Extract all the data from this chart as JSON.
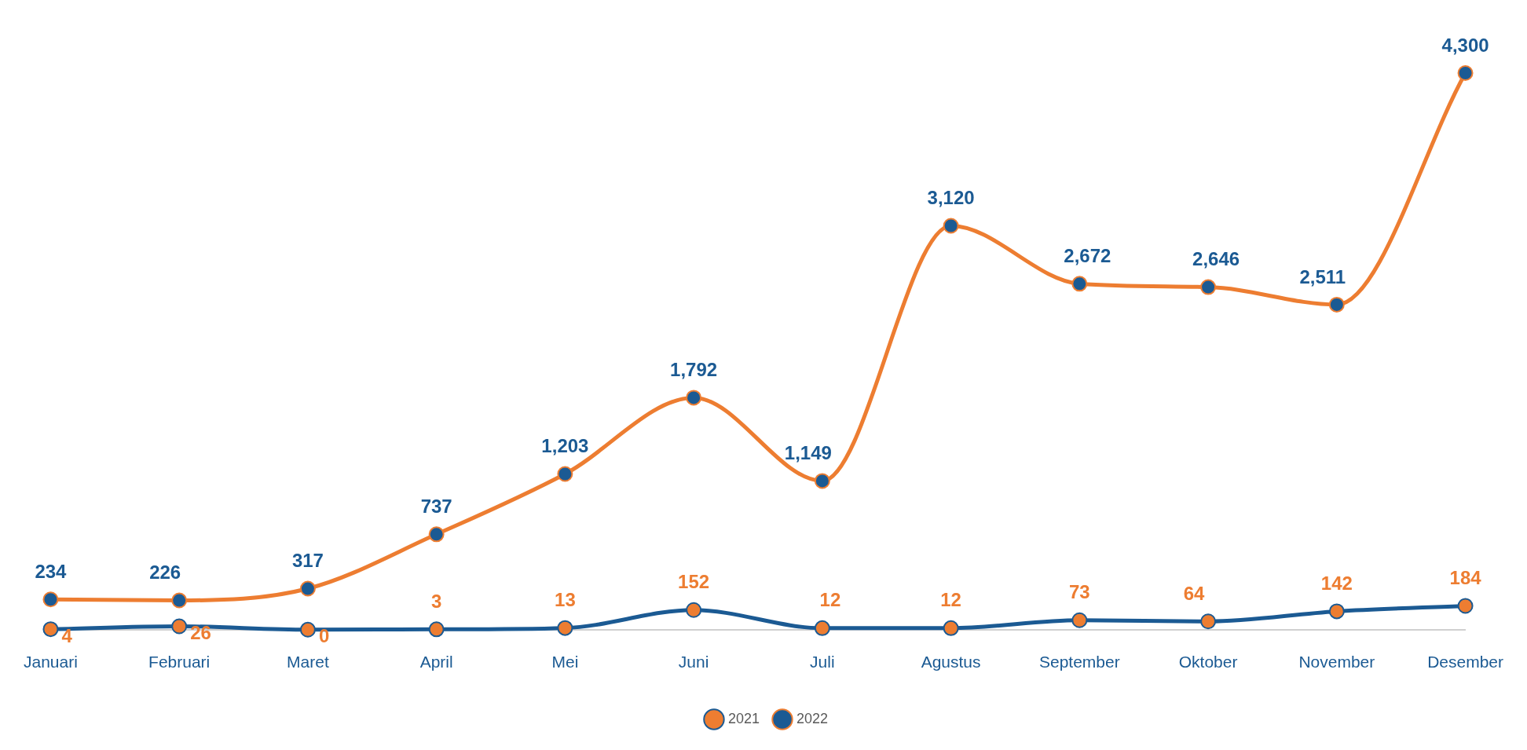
{
  "chart_data": {
    "type": "line",
    "categories": [
      "Januari",
      "Februari",
      "Maret",
      "April",
      "Mei",
      "Juni",
      "Juli",
      "Agustus",
      "September",
      "Oktober",
      "November",
      "Desember"
    ],
    "series": [
      {
        "name": "2021",
        "color": "#1b5a93",
        "values": [
          4,
          26,
          0,
          3,
          13,
          152,
          12,
          12,
          73,
          64,
          142,
          184
        ],
        "value_labels": [
          "4",
          "26",
          "0",
          "3",
          "13",
          "152",
          "12",
          "12",
          "73",
          "64",
          "142",
          "184"
        ]
      },
      {
        "name": "2022",
        "color": "#ed7d31",
        "values": [
          234,
          226,
          317,
          737,
          1203,
          1792,
          1149,
          3120,
          2672,
          2646,
          2511,
          4300
        ],
        "value_labels": [
          "234",
          "226",
          "317",
          "737",
          "1,203",
          "1,792",
          "1,149",
          "3,120",
          "2,672",
          "2,646",
          "2,511",
          "4,300"
        ]
      }
    ],
    "tick_labels": "x",
    "legend": "bottom",
    "marker": "circle",
    "line_style": "solid",
    "grid": false
  }
}
